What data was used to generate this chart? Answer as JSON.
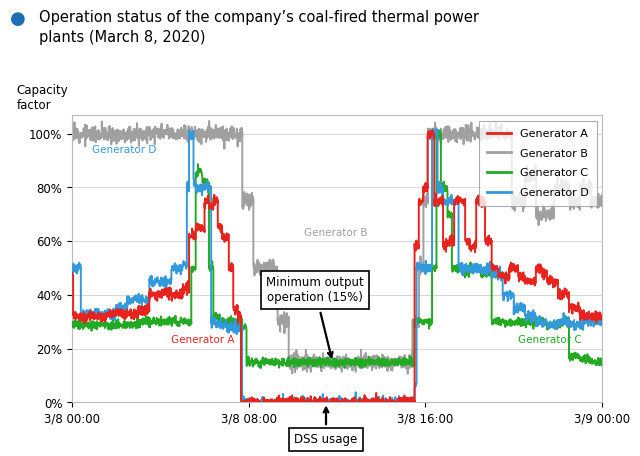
{
  "title_line1": "Operation status of the company’s coal-fired thermal power",
  "title_line2": "plants (March 8, 2020)",
  "title_dot_color": "#1e6eb4",
  "ylabel": "Capacity\nfactor",
  "xlabel_ticks": [
    "3/8 00:00",
    "3/8 08:00",
    "3/8 16:00",
    "3/9 00:00"
  ],
  "ytick_vals": [
    0,
    20,
    40,
    60,
    80,
    100
  ],
  "ylim": [
    0,
    107
  ],
  "xlim": [
    0,
    24
  ],
  "colors": {
    "A": "#e8231e",
    "B": "#a0a0a0",
    "C": "#22aa22",
    "D": "#3399dd"
  },
  "annotation_min_output": "Minimum output\noperation (15%)",
  "annotation_dss": "DSS usage",
  "label_A": "Generator A",
  "label_B": "Generator B",
  "label_C": "Generator C",
  "label_D": "Generator D",
  "background_color": "#ffffff",
  "plot_bg_color": "#ffffff",
  "grid_color": "#d0d0d0",
  "border_color": "#bbbbbb"
}
